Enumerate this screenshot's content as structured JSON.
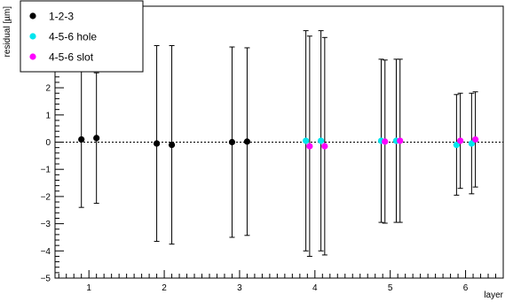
{
  "chart_data": {
    "type": "scatter",
    "title": "",
    "xlabel": "layer",
    "ylabel": "residual [µm]",
    "xlim": [
      0.55,
      6.5
    ],
    "ylim": [
      -5,
      5
    ],
    "x_ticks": [
      1,
      2,
      3,
      4,
      5,
      6
    ],
    "x_tick_labels": [
      "1",
      "2",
      "3",
      "4",
      "5",
      "6"
    ],
    "y_ticks": [
      -5,
      -4,
      -3,
      -2,
      -1,
      0,
      1,
      2,
      3,
      4,
      5
    ],
    "y_tick_labels": [
      "−5",
      "−4",
      "−3",
      "−2",
      "−1",
      "0",
      "1",
      "2",
      "3",
      "4",
      "5"
    ],
    "zero_line": "dotted",
    "grid": false,
    "legend_position": "top-left",
    "series": [
      {
        "name": "1-2-3",
        "color": "#000000",
        "points": [
          {
            "x": 0.9,
            "y": 0.1,
            "err": 2.5
          },
          {
            "x": 1.1,
            "y": 0.15,
            "err": 2.4
          },
          {
            "x": 1.9,
            "y": -0.05,
            "err": 3.6
          },
          {
            "x": 2.1,
            "y": -0.1,
            "err": 3.65
          },
          {
            "x": 2.9,
            "y": 0.0,
            "err": 3.5
          },
          {
            "x": 3.1,
            "y": 0.02,
            "err": 3.45
          }
        ]
      },
      {
        "name": "4-5-6 hole",
        "color": "#00e5ee",
        "points": [
          {
            "x": 3.88,
            "y": 0.05,
            "err": 4.05
          },
          {
            "x": 4.08,
            "y": 0.05,
            "err": 4.05
          },
          {
            "x": 4.88,
            "y": 0.05,
            "err": 3.0
          },
          {
            "x": 5.08,
            "y": 0.05,
            "err": 3.0
          },
          {
            "x": 5.88,
            "y": -0.1,
            "err": 1.85
          },
          {
            "x": 6.08,
            "y": -0.05,
            "err": 1.85
          }
        ]
      },
      {
        "name": "4-5-6 slot",
        "color": "#ff00ff",
        "points": [
          {
            "x": 3.93,
            "y": -0.15,
            "err": 4.05
          },
          {
            "x": 4.13,
            "y": -0.15,
            "err": 4.0
          },
          {
            "x": 4.93,
            "y": 0.02,
            "err": 3.0
          },
          {
            "x": 5.13,
            "y": 0.05,
            "err": 3.0
          },
          {
            "x": 5.93,
            "y": 0.05,
            "err": 1.75
          },
          {
            "x": 6.13,
            "y": 0.1,
            "err": 1.75
          }
        ]
      }
    ]
  }
}
